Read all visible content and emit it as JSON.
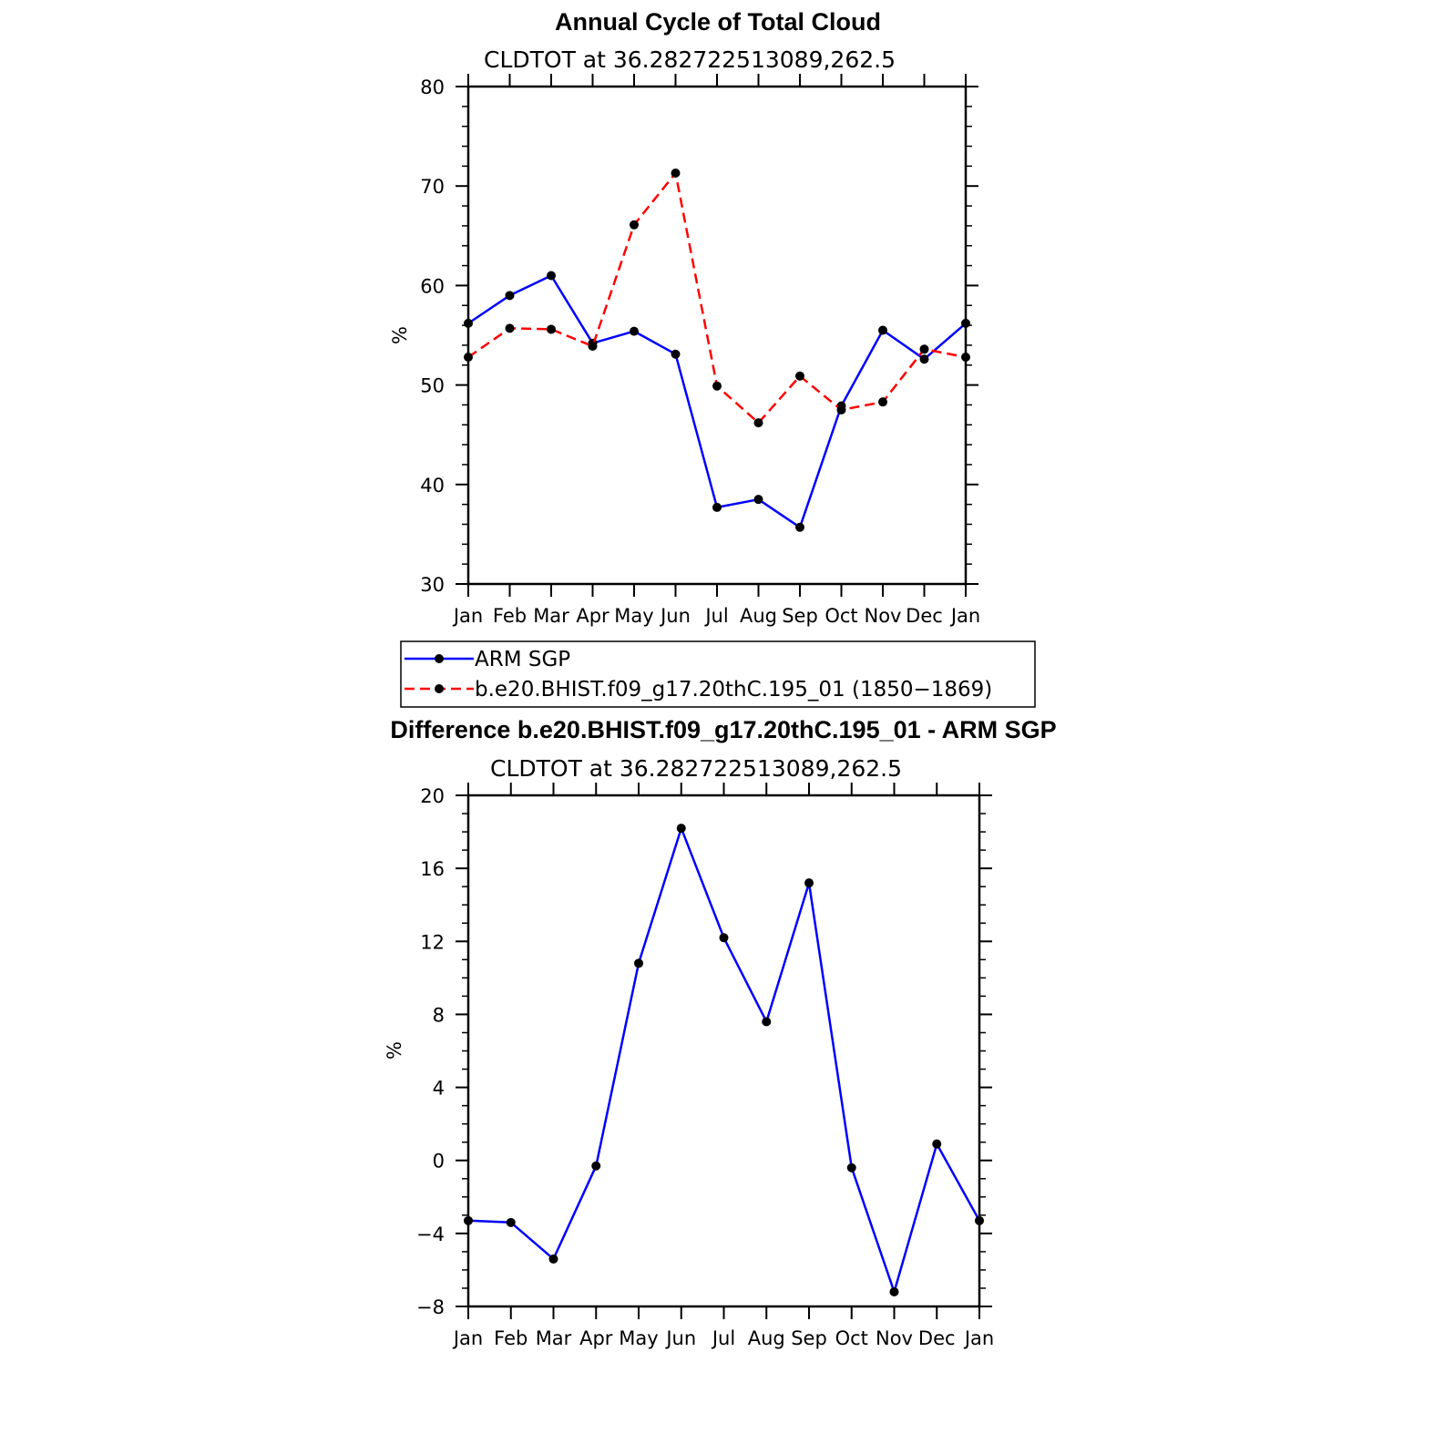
{
  "chart_data": [
    {
      "type": "line",
      "title": "Annual Cycle of Total Cloud",
      "subtitle": "CLDTOT at 36.282722513089,262.5",
      "ylabel": "%",
      "xlabel": "",
      "categories": [
        "Jan",
        "Feb",
        "Mar",
        "Apr",
        "May",
        "Jun",
        "Jul",
        "Aug",
        "Sep",
        "Oct",
        "Nov",
        "Dec",
        "Jan"
      ],
      "ylim": [
        30,
        80
      ],
      "yticks": [
        30,
        40,
        50,
        60,
        70,
        80
      ],
      "yminor_step": 2,
      "grid": false,
      "legend_position": "below",
      "series": [
        {
          "name": "ARM SGP",
          "color": "#0000ff",
          "dash": "solid",
          "values": [
            56.2,
            59.0,
            61.0,
            54.2,
            55.4,
            53.1,
            37.7,
            38.5,
            35.7,
            47.9,
            55.5,
            52.6,
            56.2
          ]
        },
        {
          "name": "b.e20.BHIST.f09_g17.20thC.195_01 (1850−1869)",
          "color": "#ff0000",
          "dash": "dashed",
          "values": [
            52.8,
            55.7,
            55.6,
            53.9,
            66.1,
            71.3,
            49.9,
            46.2,
            50.9,
            47.5,
            48.3,
            53.6,
            52.8
          ]
        }
      ]
    },
    {
      "type": "line",
      "title": "Difference b.e20.BHIST.f09_g17.20thC.195_01 - ARM SGP",
      "subtitle": "CLDTOT at 36.282722513089,262.5",
      "ylabel": "%",
      "xlabel": "",
      "categories": [
        "Jan",
        "Feb",
        "Mar",
        "Apr",
        "May",
        "Jun",
        "Jul",
        "Aug",
        "Sep",
        "Oct",
        "Nov",
        "Dec",
        "Jan"
      ],
      "ylim": [
        -8,
        20
      ],
      "yticks": [
        -8,
        -4,
        0,
        4,
        8,
        12,
        16,
        20
      ],
      "ytick_labels": [
        "−8",
        "−4",
        "0",
        "4",
        "8",
        "12",
        "16",
        "20"
      ],
      "yminor_step": 1,
      "grid": false,
      "series": [
        {
          "color": "#0000ff",
          "dash": "solid",
          "values": [
            -3.3,
            -3.4,
            -5.4,
            -0.3,
            10.8,
            18.2,
            12.2,
            7.6,
            15.2,
            -0.4,
            -7.2,
            0.9,
            -3.3
          ]
        }
      ]
    }
  ]
}
